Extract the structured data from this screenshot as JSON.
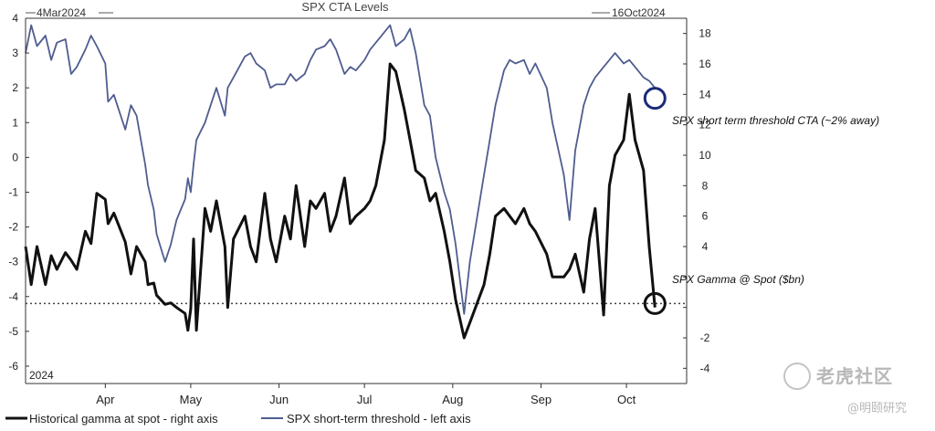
{
  "chart_data": {
    "type": "line",
    "title": "SPX CTA Levels",
    "date_start": "4Mar2024",
    "date_end": "16Oct2024",
    "x_ticks": [
      "Apr",
      "May",
      "Jun",
      "Jul",
      "Aug",
      "Sep",
      "Oct"
    ],
    "year_label": "2024",
    "left_axis": {
      "ylim": [
        -6.5,
        4
      ],
      "ticks": [
        4,
        3,
        2,
        1,
        0,
        -1,
        -2,
        -3,
        -4,
        -5,
        -6
      ],
      "tick_labels": [
        "4",
        "3",
        "2",
        "1",
        "0",
        "-1",
        "-2",
        "-3",
        "-4",
        "-5",
        "-6"
      ]
    },
    "right_axis": {
      "ylim": [
        -5,
        19
      ],
      "ticks": [
        18,
        16,
        14,
        12,
        10,
        8,
        6,
        4,
        2,
        0,
        -2,
        -4
      ],
      "tick_labels": [
        "18",
        "16",
        "14",
        "12",
        "10",
        "8",
        "6",
        "4",
        "",
        "",
        "-2",
        "-4"
      ]
    },
    "reference_line": {
      "left_value": -4.2,
      "style": "dotted"
    },
    "series": [
      {
        "name": "Historical gamma at spot - right axis",
        "axis": "right",
        "color": "#111111",
        "width": 3,
        "points": [
          [
            "2024-03-04",
            4
          ],
          [
            "2024-03-06",
            1.5
          ],
          [
            "2024-03-08",
            4
          ],
          [
            "2024-03-11",
            1.5
          ],
          [
            "2024-03-13",
            3.4
          ],
          [
            "2024-03-15",
            2.5
          ],
          [
            "2024-03-18",
            3.6
          ],
          [
            "2024-03-20",
            3.1
          ],
          [
            "2024-03-22",
            2.5
          ],
          [
            "2024-03-25",
            5
          ],
          [
            "2024-03-27",
            4.2
          ],
          [
            "2024-03-29",
            7.5
          ],
          [
            "2024-04-01",
            7.1
          ],
          [
            "2024-04-02",
            5.5
          ],
          [
            "2024-04-04",
            6.2
          ],
          [
            "2024-04-08",
            4.3
          ],
          [
            "2024-04-10",
            2.2
          ],
          [
            "2024-04-12",
            4
          ],
          [
            "2024-04-15",
            3
          ],
          [
            "2024-04-16",
            1.5
          ],
          [
            "2024-04-18",
            1.6
          ],
          [
            "2024-04-19",
            0.8
          ],
          [
            "2024-04-22",
            0.2
          ],
          [
            "2024-04-24",
            0.3
          ],
          [
            "2024-04-26",
            0
          ],
          [
            "2024-04-29",
            -0.4
          ],
          [
            "2024-04-30",
            -1.5
          ],
          [
            "2024-05-01",
            -0.1
          ],
          [
            "2024-05-02",
            4.5
          ],
          [
            "2024-05-03",
            -1.5
          ],
          [
            "2024-05-06",
            6.5
          ],
          [
            "2024-05-08",
            5
          ],
          [
            "2024-05-10",
            7
          ],
          [
            "2024-05-13",
            4
          ],
          [
            "2024-05-14",
            0
          ],
          [
            "2024-05-16",
            4.5
          ],
          [
            "2024-05-20",
            6
          ],
          [
            "2024-05-22",
            4
          ],
          [
            "2024-05-24",
            3
          ],
          [
            "2024-05-27",
            7.5
          ],
          [
            "2024-05-29",
            4.5
          ],
          [
            "2024-05-31",
            3
          ],
          [
            "2024-06-03",
            6
          ],
          [
            "2024-06-05",
            4.5
          ],
          [
            "2024-06-07",
            8
          ],
          [
            "2024-06-10",
            4
          ],
          [
            "2024-06-12",
            7
          ],
          [
            "2024-06-14",
            6.5
          ],
          [
            "2024-06-17",
            7.5
          ],
          [
            "2024-06-19",
            5
          ],
          [
            "2024-06-21",
            6
          ],
          [
            "2024-06-24",
            8.5
          ],
          [
            "2024-06-26",
            5.5
          ],
          [
            "2024-06-28",
            6
          ],
          [
            "2024-07-01",
            6.5
          ],
          [
            "2024-07-03",
            7
          ],
          [
            "2024-07-05",
            8
          ],
          [
            "2024-07-08",
            11
          ],
          [
            "2024-07-10",
            16
          ],
          [
            "2024-07-12",
            15.5
          ],
          [
            "2024-07-15",
            13
          ],
          [
            "2024-07-17",
            11
          ],
          [
            "2024-07-19",
            9
          ],
          [
            "2024-07-22",
            8.5
          ],
          [
            "2024-07-24",
            7
          ],
          [
            "2024-07-26",
            7.5
          ],
          [
            "2024-07-29",
            5
          ],
          [
            "2024-07-31",
            3
          ],
          [
            "2024-08-02",
            0.5
          ],
          [
            "2024-08-05",
            -2
          ],
          [
            "2024-08-07",
            -1
          ],
          [
            "2024-08-09",
            0
          ],
          [
            "2024-08-12",
            1.5
          ],
          [
            "2024-08-14",
            3.5
          ],
          [
            "2024-08-16",
            6
          ],
          [
            "2024-08-19",
            6.5
          ],
          [
            "2024-08-21",
            6
          ],
          [
            "2024-08-23",
            5.5
          ],
          [
            "2024-08-26",
            6.5
          ],
          [
            "2024-08-28",
            5.5
          ],
          [
            "2024-08-30",
            5
          ],
          [
            "2024-09-03",
            3.5
          ],
          [
            "2024-09-05",
            2
          ],
          [
            "2024-09-09",
            2
          ],
          [
            "2024-09-11",
            2.5
          ],
          [
            "2024-09-13",
            3.5
          ],
          [
            "2024-09-16",
            1
          ],
          [
            "2024-09-18",
            4.5
          ],
          [
            "2024-09-20",
            6.5
          ],
          [
            "2024-09-23",
            -0.5
          ],
          [
            "2024-09-25",
            8
          ],
          [
            "2024-09-27",
            10
          ],
          [
            "2024-09-30",
            11
          ],
          [
            "2024-10-02",
            14
          ],
          [
            "2024-10-04",
            11
          ],
          [
            "2024-10-07",
            9
          ],
          [
            "2024-10-09",
            4
          ],
          [
            "2024-10-11",
            0
          ]
        ]
      },
      {
        "name": "SPX short-term threshold - left axis",
        "axis": "left",
        "color": "#4f5d8f",
        "width": 1.8,
        "points": [
          [
            "2024-03-04",
            3
          ],
          [
            "2024-03-06",
            3.8
          ],
          [
            "2024-03-08",
            3.2
          ],
          [
            "2024-03-11",
            3.5
          ],
          [
            "2024-03-13",
            2.8
          ],
          [
            "2024-03-15",
            3.3
          ],
          [
            "2024-03-18",
            3.4
          ],
          [
            "2024-03-20",
            2.4
          ],
          [
            "2024-03-22",
            2.6
          ],
          [
            "2024-03-25",
            3.1
          ],
          [
            "2024-03-27",
            3.5
          ],
          [
            "2024-03-29",
            3.2
          ],
          [
            "2024-04-01",
            2.7
          ],
          [
            "2024-04-02",
            1.6
          ],
          [
            "2024-04-04",
            1.8
          ],
          [
            "2024-04-08",
            0.8
          ],
          [
            "2024-04-10",
            1.5
          ],
          [
            "2024-04-12",
            1.2
          ],
          [
            "2024-04-15",
            -0.2
          ],
          [
            "2024-04-16",
            -0.8
          ],
          [
            "2024-04-18",
            -1.5
          ],
          [
            "2024-04-19",
            -2.2
          ],
          [
            "2024-04-22",
            -3
          ],
          [
            "2024-04-24",
            -2.5
          ],
          [
            "2024-04-26",
            -1.8
          ],
          [
            "2024-04-29",
            -1.2
          ],
          [
            "2024-04-30",
            -0.6
          ],
          [
            "2024-05-01",
            -1
          ],
          [
            "2024-05-02",
            -0.2
          ],
          [
            "2024-05-03",
            0.5
          ],
          [
            "2024-05-06",
            1
          ],
          [
            "2024-05-08",
            1.5
          ],
          [
            "2024-05-10",
            2
          ],
          [
            "2024-05-13",
            1.2
          ],
          [
            "2024-05-14",
            2
          ],
          [
            "2024-05-16",
            2.3
          ],
          [
            "2024-05-20",
            2.9
          ],
          [
            "2024-05-22",
            3
          ],
          [
            "2024-05-24",
            2.7
          ],
          [
            "2024-05-27",
            2.5
          ],
          [
            "2024-05-29",
            2
          ],
          [
            "2024-05-31",
            2.1
          ],
          [
            "2024-06-03",
            2.1
          ],
          [
            "2024-06-05",
            2.4
          ],
          [
            "2024-06-07",
            2.2
          ],
          [
            "2024-06-10",
            2.4
          ],
          [
            "2024-06-12",
            2.8
          ],
          [
            "2024-06-14",
            3.1
          ],
          [
            "2024-06-17",
            3.2
          ],
          [
            "2024-06-19",
            3.4
          ],
          [
            "2024-06-21",
            3.1
          ],
          [
            "2024-06-24",
            2.4
          ],
          [
            "2024-06-26",
            2.6
          ],
          [
            "2024-06-28",
            2.5
          ],
          [
            "2024-07-01",
            2.8
          ],
          [
            "2024-07-03",
            3.1
          ],
          [
            "2024-07-05",
            3.3
          ],
          [
            "2024-07-08",
            3.6
          ],
          [
            "2024-07-10",
            3.8
          ],
          [
            "2024-07-12",
            3.2
          ],
          [
            "2024-07-15",
            3.4
          ],
          [
            "2024-07-17",
            3.7
          ],
          [
            "2024-07-19",
            3
          ],
          [
            "2024-07-22",
            1.5
          ],
          [
            "2024-07-24",
            1.2
          ],
          [
            "2024-07-26",
            0
          ],
          [
            "2024-07-29",
            -1
          ],
          [
            "2024-07-31",
            -1.5
          ],
          [
            "2024-08-02",
            -2.5
          ],
          [
            "2024-08-05",
            -4.5
          ],
          [
            "2024-08-07",
            -3
          ],
          [
            "2024-08-09",
            -2
          ],
          [
            "2024-08-12",
            -0.5
          ],
          [
            "2024-08-14",
            0.5
          ],
          [
            "2024-08-16",
            1.5
          ],
          [
            "2024-08-19",
            2.5
          ],
          [
            "2024-08-21",
            2.8
          ],
          [
            "2024-08-23",
            2.7
          ],
          [
            "2024-08-26",
            2.8
          ],
          [
            "2024-08-28",
            2.4
          ],
          [
            "2024-08-30",
            2.7
          ],
          [
            "2024-09-03",
            2
          ],
          [
            "2024-09-05",
            1
          ],
          [
            "2024-09-09",
            -0.5
          ],
          [
            "2024-09-11",
            -1.8
          ],
          [
            "2024-09-13",
            0.2
          ],
          [
            "2024-09-16",
            1.5
          ],
          [
            "2024-09-18",
            2
          ],
          [
            "2024-09-20",
            2.3
          ],
          [
            "2024-09-23",
            2.6
          ],
          [
            "2024-09-25",
            2.8
          ],
          [
            "2024-09-27",
            3
          ],
          [
            "2024-09-30",
            2.7
          ],
          [
            "2024-10-02",
            2.8
          ],
          [
            "2024-10-04",
            2.6
          ],
          [
            "2024-10-07",
            2.3
          ],
          [
            "2024-10-09",
            2.2
          ],
          [
            "2024-10-11",
            2
          ]
        ]
      }
    ],
    "annotations": [
      {
        "text": "SPX short term threshold CTA (~2% away)",
        "date": "2024-10-11",
        "value": 1.7,
        "axis": "left",
        "marker_color": "#1b2a78"
      },
      {
        "text": "SPX Gamma @ Spot ($bn)",
        "date": "2024-10-11",
        "value": -4.2,
        "axis": "left",
        "marker_color": "#111111"
      }
    ],
    "legend": {
      "placement": "bottom-left"
    }
  },
  "watermarks": {
    "primary": "老虎社区",
    "secondary": "@明颐研究"
  }
}
